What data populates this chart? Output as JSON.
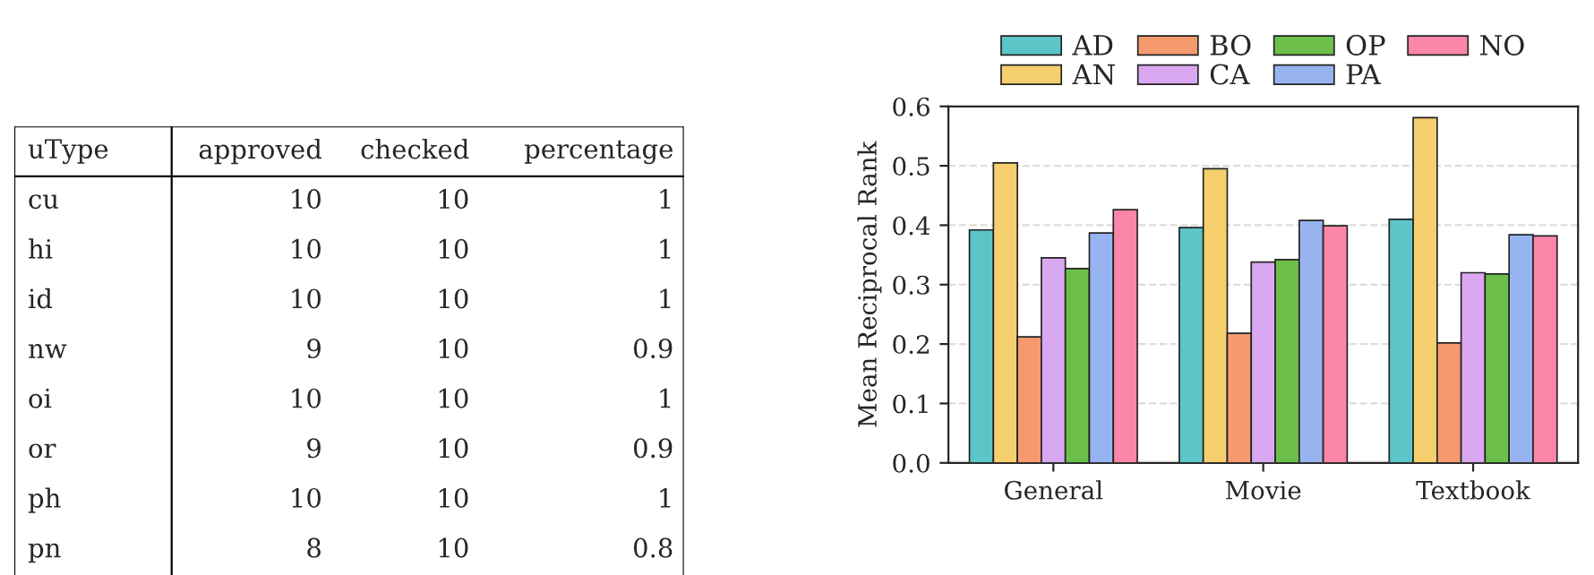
{
  "chart_data": [
    {
      "type": "other",
      "categories": [
        "uType",
        "approved",
        "checked",
        "percentage"
      ],
      "y_categories": [
        "cu",
        "hi",
        "id",
        "nw",
        "oi",
        "or",
        "ph",
        "pn"
      ],
      "cell_labels": [
        [
          "10",
          "10",
          "1"
        ],
        [
          "10",
          "10",
          "1"
        ],
        [
          "10",
          "10",
          "1"
        ],
        [
          "9",
          "10",
          "0.9"
        ],
        [
          "10",
          "10",
          "1"
        ],
        [
          "9",
          "10",
          "0.9"
        ],
        [
          "10",
          "10",
          "1"
        ],
        [
          "8",
          "10",
          "0.8"
        ]
      ]
    },
    {
      "type": "bar",
      "categories": [
        "General",
        "Movie",
        "Textbook"
      ],
      "ylabel": "Mean Reciprocal Rank",
      "ylim": [
        0,
        0.6
      ],
      "yticks": [
        {
          "value": 0,
          "label": "0.0"
        },
        {
          "value": 0.1,
          "label": "0.1"
        },
        {
          "value": 0.2,
          "label": "0.2"
        },
        {
          "value": 0.3,
          "label": "0.3"
        },
        {
          "value": 0.4,
          "label": "0.4"
        },
        {
          "value": 0.5,
          "label": "0.5"
        },
        {
          "value": 0.6,
          "label": "0.6"
        }
      ],
      "grid": "y",
      "legend": "top",
      "series": [
        {
          "name": "AD",
          "color": "#5bc5c8",
          "values": [
            0.392,
            0.396,
            0.41
          ]
        },
        {
          "name": "AN",
          "color": "#f5cf6e",
          "values": [
            0.505,
            0.495,
            0.581
          ]
        },
        {
          "name": "BO",
          "color": "#f59a6e",
          "values": [
            0.212,
            0.218,
            0.202
          ]
        },
        {
          "name": "CA",
          "color": "#d9a8f0",
          "values": [
            0.345,
            0.338,
            0.32
          ]
        },
        {
          "name": "OP",
          "color": "#6cbf4a",
          "values": [
            0.327,
            0.342,
            0.318
          ]
        },
        {
          "name": "PA",
          "color": "#98b4f0",
          "values": [
            0.387,
            0.408,
            0.384
          ]
        },
        {
          "name": "NO",
          "color": "#fb86a8",
          "values": [
            0.426,
            0.399,
            0.382
          ]
        }
      ]
    }
  ]
}
